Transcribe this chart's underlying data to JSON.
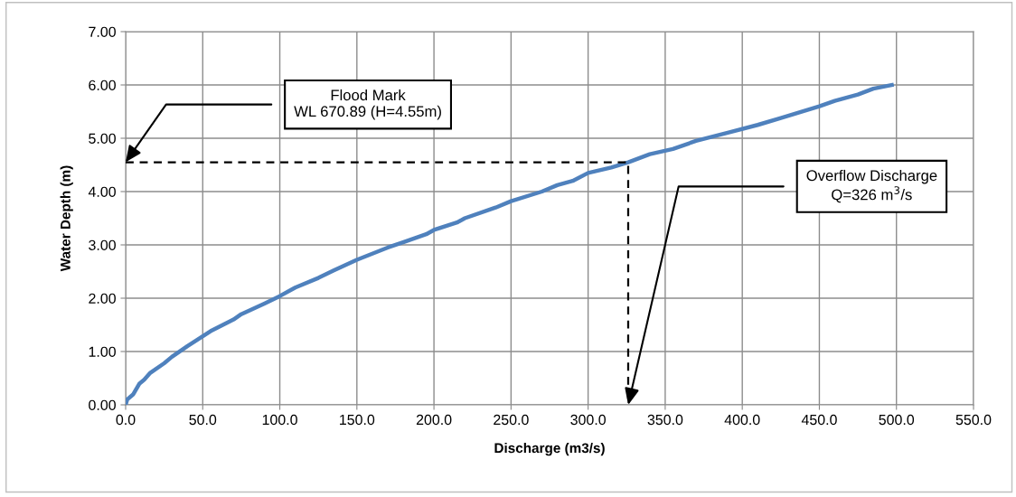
{
  "chart_data": {
    "type": "line",
    "xlabel": "Discharge (m3/s)",
    "ylabel": "Water Depth (m)",
    "series": [
      {
        "color": "#4f81bd",
        "line_style": "solid",
        "x": [
          0,
          1,
          5,
          9,
          12,
          16,
          25,
          30,
          40,
          55,
          70,
          75,
          90,
          100,
          110,
          125,
          135,
          150,
          170,
          180,
          195,
          200,
          215,
          220,
          240,
          250,
          270,
          280,
          290,
          300,
          315,
          326,
          340,
          355,
          370,
          390,
          410,
          425,
          450,
          460,
          475,
          485,
          497
        ],
        "values": [
          0,
          0.1,
          0.2,
          0.4,
          0.47,
          0.6,
          0.78,
          0.9,
          1.1,
          1.38,
          1.6,
          1.7,
          1.9,
          2.04,
          2.2,
          2.38,
          2.52,
          2.72,
          2.95,
          3.05,
          3.2,
          3.28,
          3.42,
          3.5,
          3.7,
          3.82,
          4.0,
          4.12,
          4.2,
          4.35,
          4.45,
          4.55,
          4.7,
          4.8,
          4.95,
          5.1,
          5.25,
          5.38,
          5.6,
          5.7,
          5.82,
          5.93,
          6.0
        ]
      },
      {
        "color": "#000000",
        "line_style": "dashed",
        "x": [
          0,
          326,
          326
        ],
        "values": [
          4.55,
          4.55,
          0
        ]
      }
    ],
    "annotations": [
      "Flood Mark\nWL 670.89 (H=4.55m)",
      "Overflow Discharge\nQ=326 m$^{3}$/s"
    ],
    "xlim": [
      0,
      550
    ],
    "xticks": [
      {
        "value": 0,
        "label": "0.0"
      },
      {
        "value": 50,
        "label": "50.0"
      },
      {
        "value": 100,
        "label": "100.0"
      },
      {
        "value": 150,
        "label": "150.0"
      },
      {
        "value": 200,
        "label": "200.0"
      },
      {
        "value": 250,
        "label": "250.0"
      },
      {
        "value": 300,
        "label": "300.0"
      },
      {
        "value": 350,
        "label": "350.0"
      },
      {
        "value": 400,
        "label": "400.0"
      },
      {
        "value": 450,
        "label": "450.0"
      },
      {
        "value": 500,
        "label": "500.0"
      },
      {
        "value": 550,
        "label": "550.0"
      }
    ],
    "ylim": [
      0,
      7
    ],
    "yticks": [
      {
        "value": 0,
        "label": "0.00"
      },
      {
        "value": 1,
        "label": "1.00"
      },
      {
        "value": 2,
        "label": "2.00"
      },
      {
        "value": 3,
        "label": "3.00"
      },
      {
        "value": 4,
        "label": "4.00"
      },
      {
        "value": 5,
        "label": "5.00"
      },
      {
        "value": 6,
        "label": "6.00"
      },
      {
        "value": 7,
        "label": "7.00"
      }
    ],
    "grid": true,
    "marker": "none"
  }
}
